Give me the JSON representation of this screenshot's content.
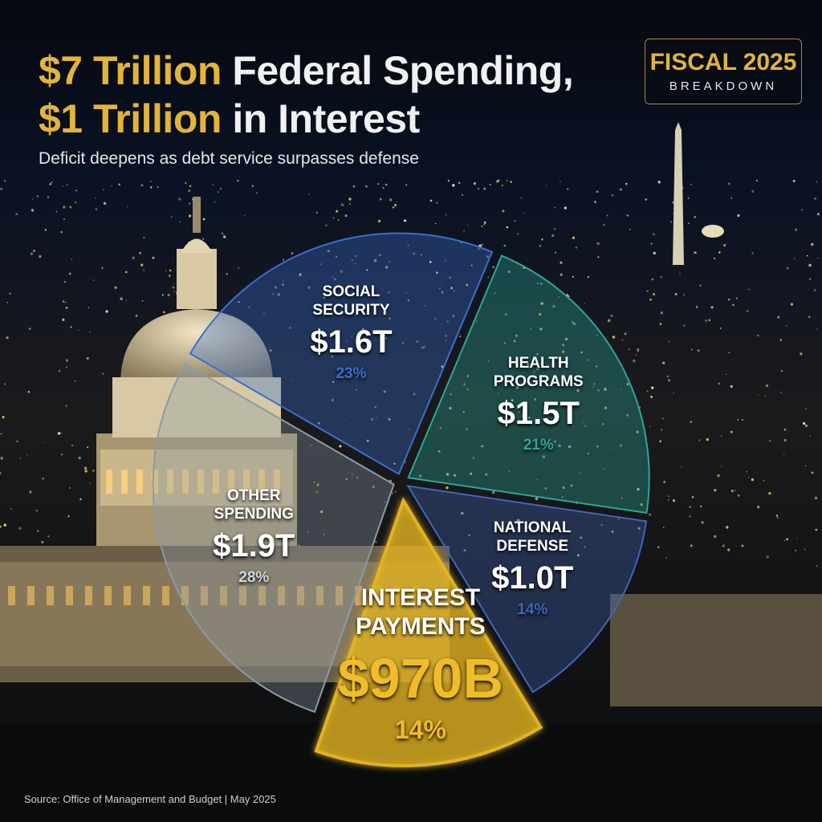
{
  "chart_data": {
    "type": "pie",
    "title": {
      "line1": {
        "accent": "$7 Trillion",
        "rest": "Federal Spending,"
      },
      "line2": {
        "accent": "$1 Trillion",
        "rest": "in Interest"
      }
    },
    "subtitle": "Deficit deepens as debt service surpasses defense",
    "badge": {
      "title": "FISCAL 2025",
      "subtitle": "BREAKDOWN"
    },
    "categories": [
      "SOCIAL SECURITY",
      "HEALTH PROGRAMS",
      "NATIONAL DEFENSE",
      "INTEREST PAYMENTS",
      "OTHER SPENDING"
    ],
    "values": [
      23,
      21,
      14,
      14,
      28
    ],
    "value_labels": [
      "23%",
      "21%",
      "14%",
      "14%",
      "28%"
    ],
    "amount_labels": [
      "$1.6T",
      "$1.5T",
      "$1.0T",
      "$970B",
      "$1.9T"
    ],
    "colors": [
      "#3a6fd0",
      "#2aa89a",
      "#3f66b8",
      "#e2b320",
      "#8a9aa8"
    ],
    "source": "Source: Office of Management and Budget  |  May 2025"
  }
}
